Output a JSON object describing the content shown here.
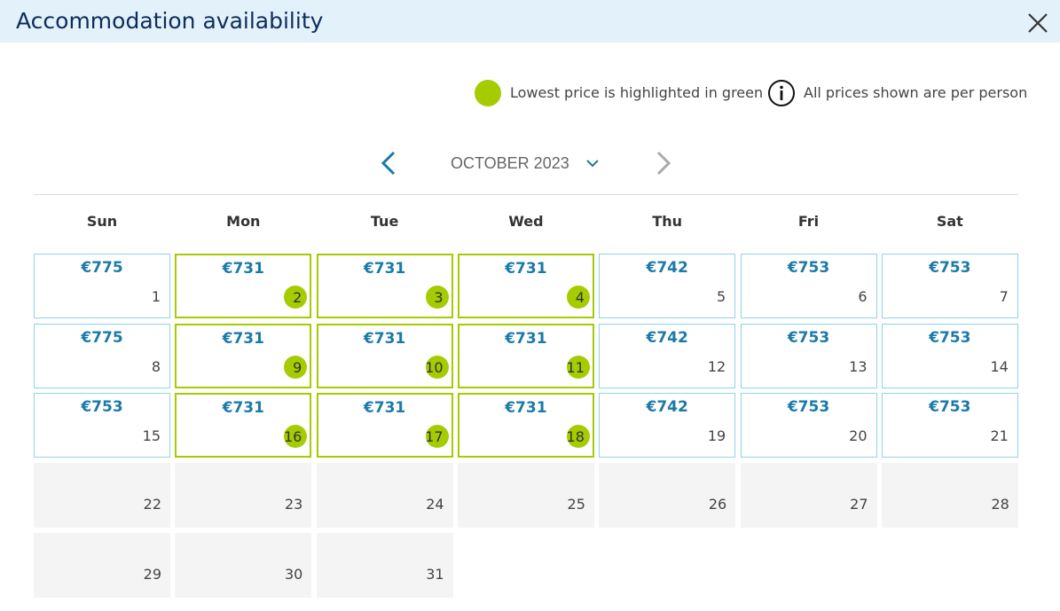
{
  "header": {
    "title": "Accommodation availability"
  },
  "legend": {
    "lowest": "Lowest price is highlighted in green",
    "per_person": "All prices shown are per person"
  },
  "calendar": {
    "month": "OCTOBER 2023",
    "weekdays": [
      "Sun",
      "Mon",
      "Tue",
      "Wed",
      "Thu",
      "Fri",
      "Sat"
    ],
    "days": [
      {
        "day": 1,
        "price": "€775",
        "lowest": false
      },
      {
        "day": 2,
        "price": "€731",
        "lowest": true
      },
      {
        "day": 3,
        "price": "€731",
        "lowest": true
      },
      {
        "day": 4,
        "price": "€731",
        "lowest": true
      },
      {
        "day": 5,
        "price": "€742",
        "lowest": false
      },
      {
        "day": 6,
        "price": "€753",
        "lowest": false
      },
      {
        "day": 7,
        "price": "€753",
        "lowest": false
      },
      {
        "day": 8,
        "price": "€775",
        "lowest": false
      },
      {
        "day": 9,
        "price": "€731",
        "lowest": true
      },
      {
        "day": 10,
        "price": "€731",
        "lowest": true
      },
      {
        "day": 11,
        "price": "€731",
        "lowest": true
      },
      {
        "day": 12,
        "price": "€742",
        "lowest": false
      },
      {
        "day": 13,
        "price": "€753",
        "lowest": false
      },
      {
        "day": 14,
        "price": "€753",
        "lowest": false
      },
      {
        "day": 15,
        "price": "€753",
        "lowest": false
      },
      {
        "day": 16,
        "price": "€731",
        "lowest": true
      },
      {
        "day": 17,
        "price": "€731",
        "lowest": true
      },
      {
        "day": 18,
        "price": "€731",
        "lowest": true
      },
      {
        "day": 19,
        "price": "€742",
        "lowest": false
      },
      {
        "day": 20,
        "price": "€753",
        "lowest": false
      },
      {
        "day": 21,
        "price": "€753",
        "lowest": false
      },
      {
        "day": 22
      },
      {
        "day": 23
      },
      {
        "day": 24
      },
      {
        "day": 25
      },
      {
        "day": 26
      },
      {
        "day": 27
      },
      {
        "day": 28
      },
      {
        "day": 29
      },
      {
        "day": 30
      },
      {
        "day": 31
      }
    ]
  }
}
